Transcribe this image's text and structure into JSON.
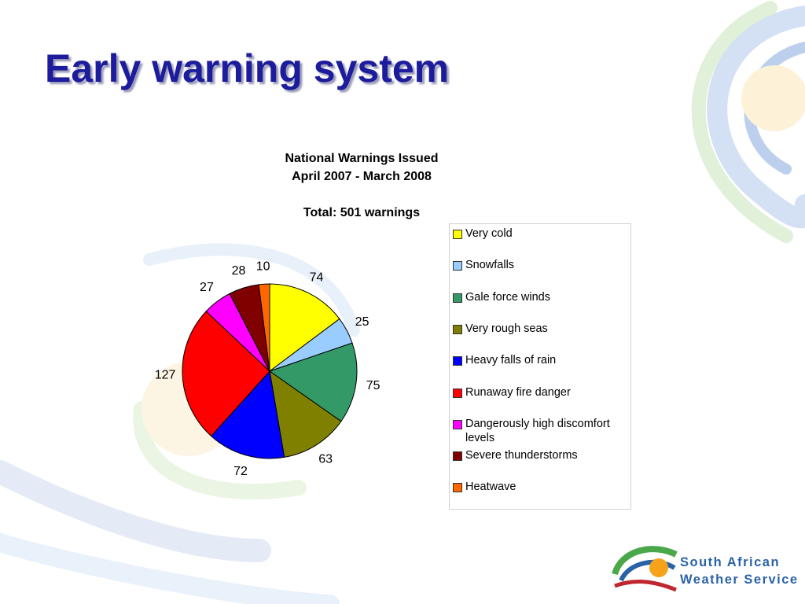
{
  "slide_title": "Early warning system",
  "logo": {
    "line1": "South African",
    "line2": "Weather Service"
  },
  "chart_data": {
    "type": "pie",
    "title": "National Warnings Issued",
    "subtitle": "April 2007 - March 2008",
    "annotation": "Total: 501 warnings",
    "categories": [
      "Very cold",
      "Snowfalls",
      "Gale force winds",
      "Very rough seas",
      "Heavy falls of rain",
      "Runaway fire danger",
      "Dangerously high discomfort levels",
      "Severe thunderstorms",
      "Heatwave"
    ],
    "values": [
      74,
      25,
      75,
      63,
      72,
      127,
      27,
      28,
      10
    ],
    "colors": [
      "#ffff00",
      "#99ccff",
      "#339966",
      "#808000",
      "#0000ff",
      "#ff0000",
      "#ff00ff",
      "#800000",
      "#ff6600"
    ],
    "legend": "right"
  }
}
